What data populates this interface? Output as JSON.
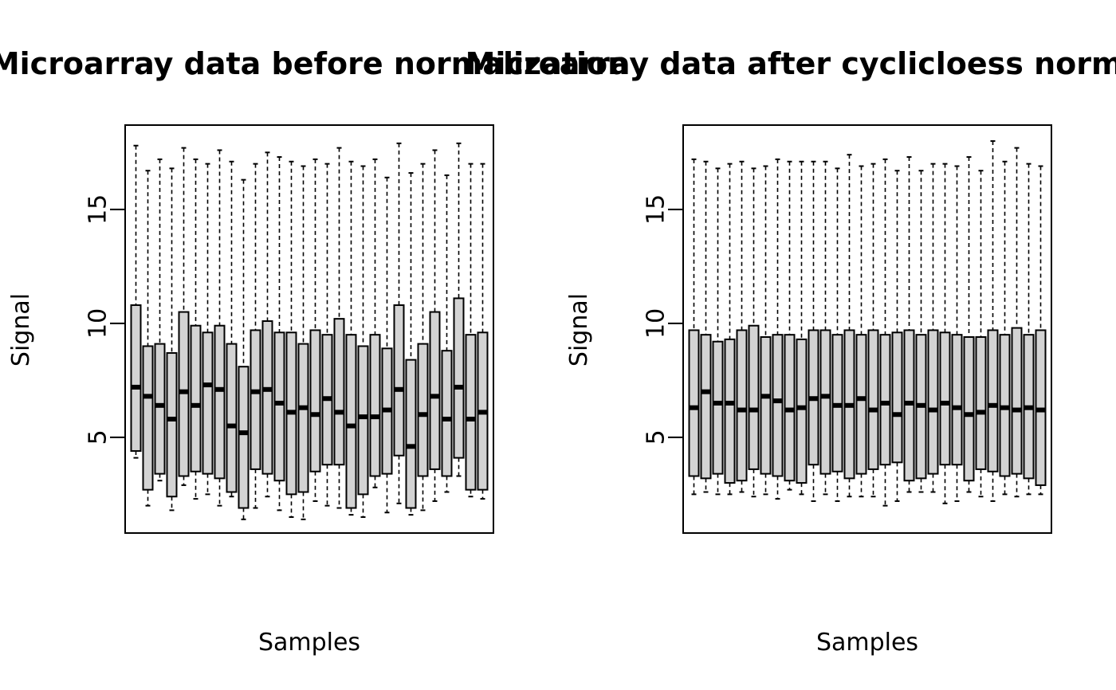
{
  "chart_data": [
    {
      "type": "boxplot",
      "title": "Microarray data before normalization",
      "xlabel": "Samples",
      "ylabel": "Signal",
      "ylim": [
        0.8,
        18.7
      ],
      "yticks": [
        5,
        10,
        15
      ],
      "box_color": "#d3d3d3",
      "boxes": [
        {
          "low": 4.1,
          "q1": 4.4,
          "median": 7.2,
          "q3": 10.8,
          "high": 17.8
        },
        {
          "low": 2.0,
          "q1": 2.7,
          "median": 6.8,
          "q3": 9.0,
          "high": 16.7
        },
        {
          "low": 3.1,
          "q1": 3.4,
          "median": 6.4,
          "q3": 9.1,
          "high": 17.2
        },
        {
          "low": 1.8,
          "q1": 2.4,
          "median": 5.8,
          "q3": 8.7,
          "high": 16.8
        },
        {
          "low": 2.9,
          "q1": 3.3,
          "median": 7.0,
          "q3": 10.5,
          "high": 17.7
        },
        {
          "low": 2.3,
          "q1": 3.5,
          "median": 6.4,
          "q3": 9.9,
          "high": 17.2
        },
        {
          "low": 2.5,
          "q1": 3.4,
          "median": 7.3,
          "q3": 9.6,
          "high": 17.0
        },
        {
          "low": 2.0,
          "q1": 3.2,
          "median": 7.1,
          "q3": 9.9,
          "high": 17.6
        },
        {
          "low": 2.4,
          "q1": 2.6,
          "median": 5.5,
          "q3": 9.1,
          "high": 17.1
        },
        {
          "low": 1.4,
          "q1": 1.9,
          "median": 5.2,
          "q3": 8.1,
          "high": 16.3
        },
        {
          "low": 1.9,
          "q1": 3.6,
          "median": 7.0,
          "q3": 9.7,
          "high": 17.0
        },
        {
          "low": 2.4,
          "q1": 3.4,
          "median": 7.1,
          "q3": 10.1,
          "high": 17.5
        },
        {
          "low": 1.8,
          "q1": 3.1,
          "median": 6.5,
          "q3": 9.6,
          "high": 17.3
        },
        {
          "low": 1.5,
          "q1": 2.5,
          "median": 6.1,
          "q3": 9.6,
          "high": 17.1
        },
        {
          "low": 1.4,
          "q1": 2.6,
          "median": 6.3,
          "q3": 9.1,
          "high": 16.9
        },
        {
          "low": 2.2,
          "q1": 3.5,
          "median": 6.0,
          "q3": 9.7,
          "high": 17.2
        },
        {
          "low": 2.0,
          "q1": 3.8,
          "median": 6.7,
          "q3": 9.5,
          "high": 17.0
        },
        {
          "low": 1.9,
          "q1": 3.8,
          "median": 6.1,
          "q3": 10.2,
          "high": 17.7
        },
        {
          "low": 1.6,
          "q1": 1.9,
          "median": 5.5,
          "q3": 9.5,
          "high": 17.1
        },
        {
          "low": 1.5,
          "q1": 2.5,
          "median": 5.9,
          "q3": 9.0,
          "high": 16.9
        },
        {
          "low": 2.8,
          "q1": 3.3,
          "median": 5.9,
          "q3": 9.5,
          "high": 17.2
        },
        {
          "low": 1.7,
          "q1": 3.4,
          "median": 6.2,
          "q3": 8.9,
          "high": 16.4
        },
        {
          "low": 2.1,
          "q1": 4.2,
          "median": 7.1,
          "q3": 10.8,
          "high": 17.9
        },
        {
          "low": 1.6,
          "q1": 1.9,
          "median": 4.6,
          "q3": 8.4,
          "high": 16.6
        },
        {
          "low": 1.8,
          "q1": 3.3,
          "median": 6.0,
          "q3": 9.1,
          "high": 17.0
        },
        {
          "low": 2.2,
          "q1": 3.6,
          "median": 6.8,
          "q3": 10.5,
          "high": 17.6
        },
        {
          "low": 2.6,
          "q1": 3.3,
          "median": 5.8,
          "q3": 8.8,
          "high": 16.5
        },
        {
          "low": 3.3,
          "q1": 4.1,
          "median": 7.2,
          "q3": 11.1,
          "high": 17.9
        },
        {
          "low": 2.4,
          "q1": 2.7,
          "median": 5.8,
          "q3": 9.5,
          "high": 17.0
        },
        {
          "low": 2.3,
          "q1": 2.7,
          "median": 6.1,
          "q3": 9.6,
          "high": 17.0
        }
      ]
    },
    {
      "type": "boxplot",
      "title": "Microarray data after cyclicloess normalization",
      "xlabel": "Samples",
      "ylabel": "Signal",
      "ylim": [
        0.8,
        18.7
      ],
      "yticks": [
        5,
        10,
        15
      ],
      "box_color": "#d3d3d3",
      "boxes": [
        {
          "low": 2.5,
          "q1": 3.3,
          "median": 6.3,
          "q3": 9.7,
          "high": 17.2
        },
        {
          "low": 2.6,
          "q1": 3.2,
          "median": 7.0,
          "q3": 9.5,
          "high": 17.1
        },
        {
          "low": 2.5,
          "q1": 3.4,
          "median": 6.5,
          "q3": 9.2,
          "high": 16.8
        },
        {
          "low": 2.5,
          "q1": 3.0,
          "median": 6.5,
          "q3": 9.3,
          "high": 17.0
        },
        {
          "low": 2.6,
          "q1": 3.1,
          "median": 6.2,
          "q3": 9.7,
          "high": 17.1
        },
        {
          "low": 2.4,
          "q1": 3.6,
          "median": 6.2,
          "q3": 9.9,
          "high": 16.8
        },
        {
          "low": 2.5,
          "q1": 3.4,
          "median": 6.8,
          "q3": 9.4,
          "high": 16.9
        },
        {
          "low": 2.3,
          "q1": 3.3,
          "median": 6.6,
          "q3": 9.5,
          "high": 17.2
        },
        {
          "low": 2.7,
          "q1": 3.1,
          "median": 6.2,
          "q3": 9.5,
          "high": 17.1
        },
        {
          "low": 2.5,
          "q1": 3.0,
          "median": 6.3,
          "q3": 9.3,
          "high": 17.1
        },
        {
          "low": 2.2,
          "q1": 3.8,
          "median": 6.7,
          "q3": 9.7,
          "high": 17.1
        },
        {
          "low": 2.5,
          "q1": 3.4,
          "median": 6.8,
          "q3": 9.7,
          "high": 17.1
        },
        {
          "low": 2.2,
          "q1": 3.5,
          "median": 6.4,
          "q3": 9.5,
          "high": 16.8
        },
        {
          "low": 2.4,
          "q1": 3.2,
          "median": 6.4,
          "q3": 9.7,
          "high": 17.4
        },
        {
          "low": 2.4,
          "q1": 3.4,
          "median": 6.7,
          "q3": 9.5,
          "high": 16.9
        },
        {
          "low": 2.4,
          "q1": 3.6,
          "median": 6.2,
          "q3": 9.7,
          "high": 17.0
        },
        {
          "low": 2.0,
          "q1": 3.8,
          "median": 6.5,
          "q3": 9.5,
          "high": 17.2
        },
        {
          "low": 2.2,
          "q1": 3.9,
          "median": 6.0,
          "q3": 9.6,
          "high": 16.7
        },
        {
          "low": 2.6,
          "q1": 3.1,
          "median": 6.5,
          "q3": 9.7,
          "high": 17.3
        },
        {
          "low": 2.6,
          "q1": 3.2,
          "median": 6.4,
          "q3": 9.5,
          "high": 16.7
        },
        {
          "low": 2.6,
          "q1": 3.4,
          "median": 6.2,
          "q3": 9.7,
          "high": 17.0
        },
        {
          "low": 2.1,
          "q1": 3.8,
          "median": 6.5,
          "q3": 9.6,
          "high": 17.0
        },
        {
          "low": 2.2,
          "q1": 3.8,
          "median": 6.3,
          "q3": 9.5,
          "high": 16.9
        },
        {
          "low": 2.6,
          "q1": 3.1,
          "median": 6.0,
          "q3": 9.4,
          "high": 17.3
        },
        {
          "low": 2.4,
          "q1": 3.6,
          "median": 6.1,
          "q3": 9.4,
          "high": 16.7
        },
        {
          "low": 2.2,
          "q1": 3.5,
          "median": 6.4,
          "q3": 9.7,
          "high": 18.0
        },
        {
          "low": 2.5,
          "q1": 3.3,
          "median": 6.3,
          "q3": 9.5,
          "high": 17.1
        },
        {
          "low": 2.4,
          "q1": 3.4,
          "median": 6.2,
          "q3": 9.8,
          "high": 17.7
        },
        {
          "low": 2.5,
          "q1": 3.2,
          "median": 6.3,
          "q3": 9.5,
          "high": 17.0
        },
        {
          "low": 2.5,
          "q1": 2.9,
          "median": 6.2,
          "q3": 9.7,
          "high": 16.9
        }
      ]
    }
  ]
}
